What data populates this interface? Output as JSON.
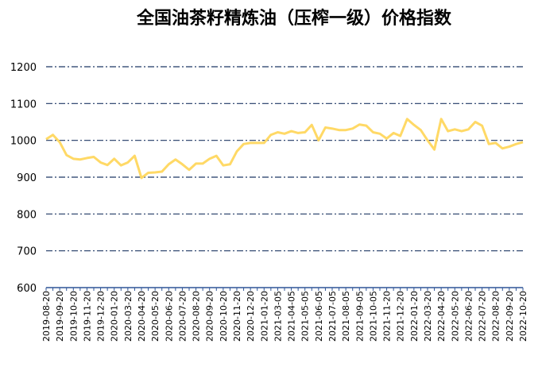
{
  "chart_data": {
    "type": "line",
    "title": "全国油茶籽精炼油（压榨一级）价格指数",
    "categories": [
      "2019-08-20",
      null,
      "2019-09-20",
      null,
      "2019-10-20",
      null,
      "2019-11-20",
      null,
      "2019-12-20",
      null,
      "2020-01-20",
      null,
      "2020-03-20",
      null,
      "2020-04-20",
      null,
      "2020-05-20",
      null,
      "2020-06-20",
      null,
      "2020-07-20",
      null,
      "2020-08-20",
      null,
      "2020-09-20",
      null,
      "2020-10-20",
      null,
      "2020-11-20",
      null,
      "2020-12-20",
      null,
      "2021-01-20",
      null,
      "2021-03-05",
      null,
      "2021-04-05",
      null,
      "2021-05-05",
      null,
      "2021-06-05",
      null,
      "2021-07-05",
      null,
      "2021-08-05",
      null,
      "2021-09-05",
      null,
      "2021-10-05",
      null,
      "2021-11-20",
      null,
      "2021-12-20",
      null,
      "2022-01-20",
      null,
      "2022-03-20",
      null,
      "2022-04-20",
      null,
      "2022-05-20",
      null,
      "2022-06-20",
      null,
      "2022-07-20",
      null,
      "2022-08-20",
      null,
      "2022-09-20",
      null,
      "2022-10-20"
    ],
    "series": [
      {
        "name": "价格指数",
        "color": "#ffd966",
        "values": [
          1003,
          1015,
          995,
          960,
          950,
          948,
          952,
          955,
          940,
          933,
          950,
          932,
          940,
          958,
          898,
          912,
          913,
          915,
          935,
          948,
          935,
          920,
          937,
          937,
          950,
          958,
          932,
          935,
          970,
          990,
          993,
          993,
          993,
          1015,
          1022,
          1018,
          1025,
          1020,
          1022,
          1042,
          1000,
          1035,
          1032,
          1028,
          1028,
          1032,
          1043,
          1040,
          1022,
          1018,
          1005,
          1020,
          1012,
          1058,
          1042,
          1028,
          1000,
          975,
          1058,
          1025,
          1030,
          1025,
          1030,
          1050,
          1040,
          990,
          993,
          978,
          983,
          990,
          995
        ]
      }
    ],
    "ylim": [
      600,
      1200
    ],
    "yticks": [
      600,
      700,
      800,
      900,
      1000,
      1100,
      1200
    ],
    "grid": true,
    "grid_color": "#1f3864",
    "axis_color": "#2f5597"
  }
}
